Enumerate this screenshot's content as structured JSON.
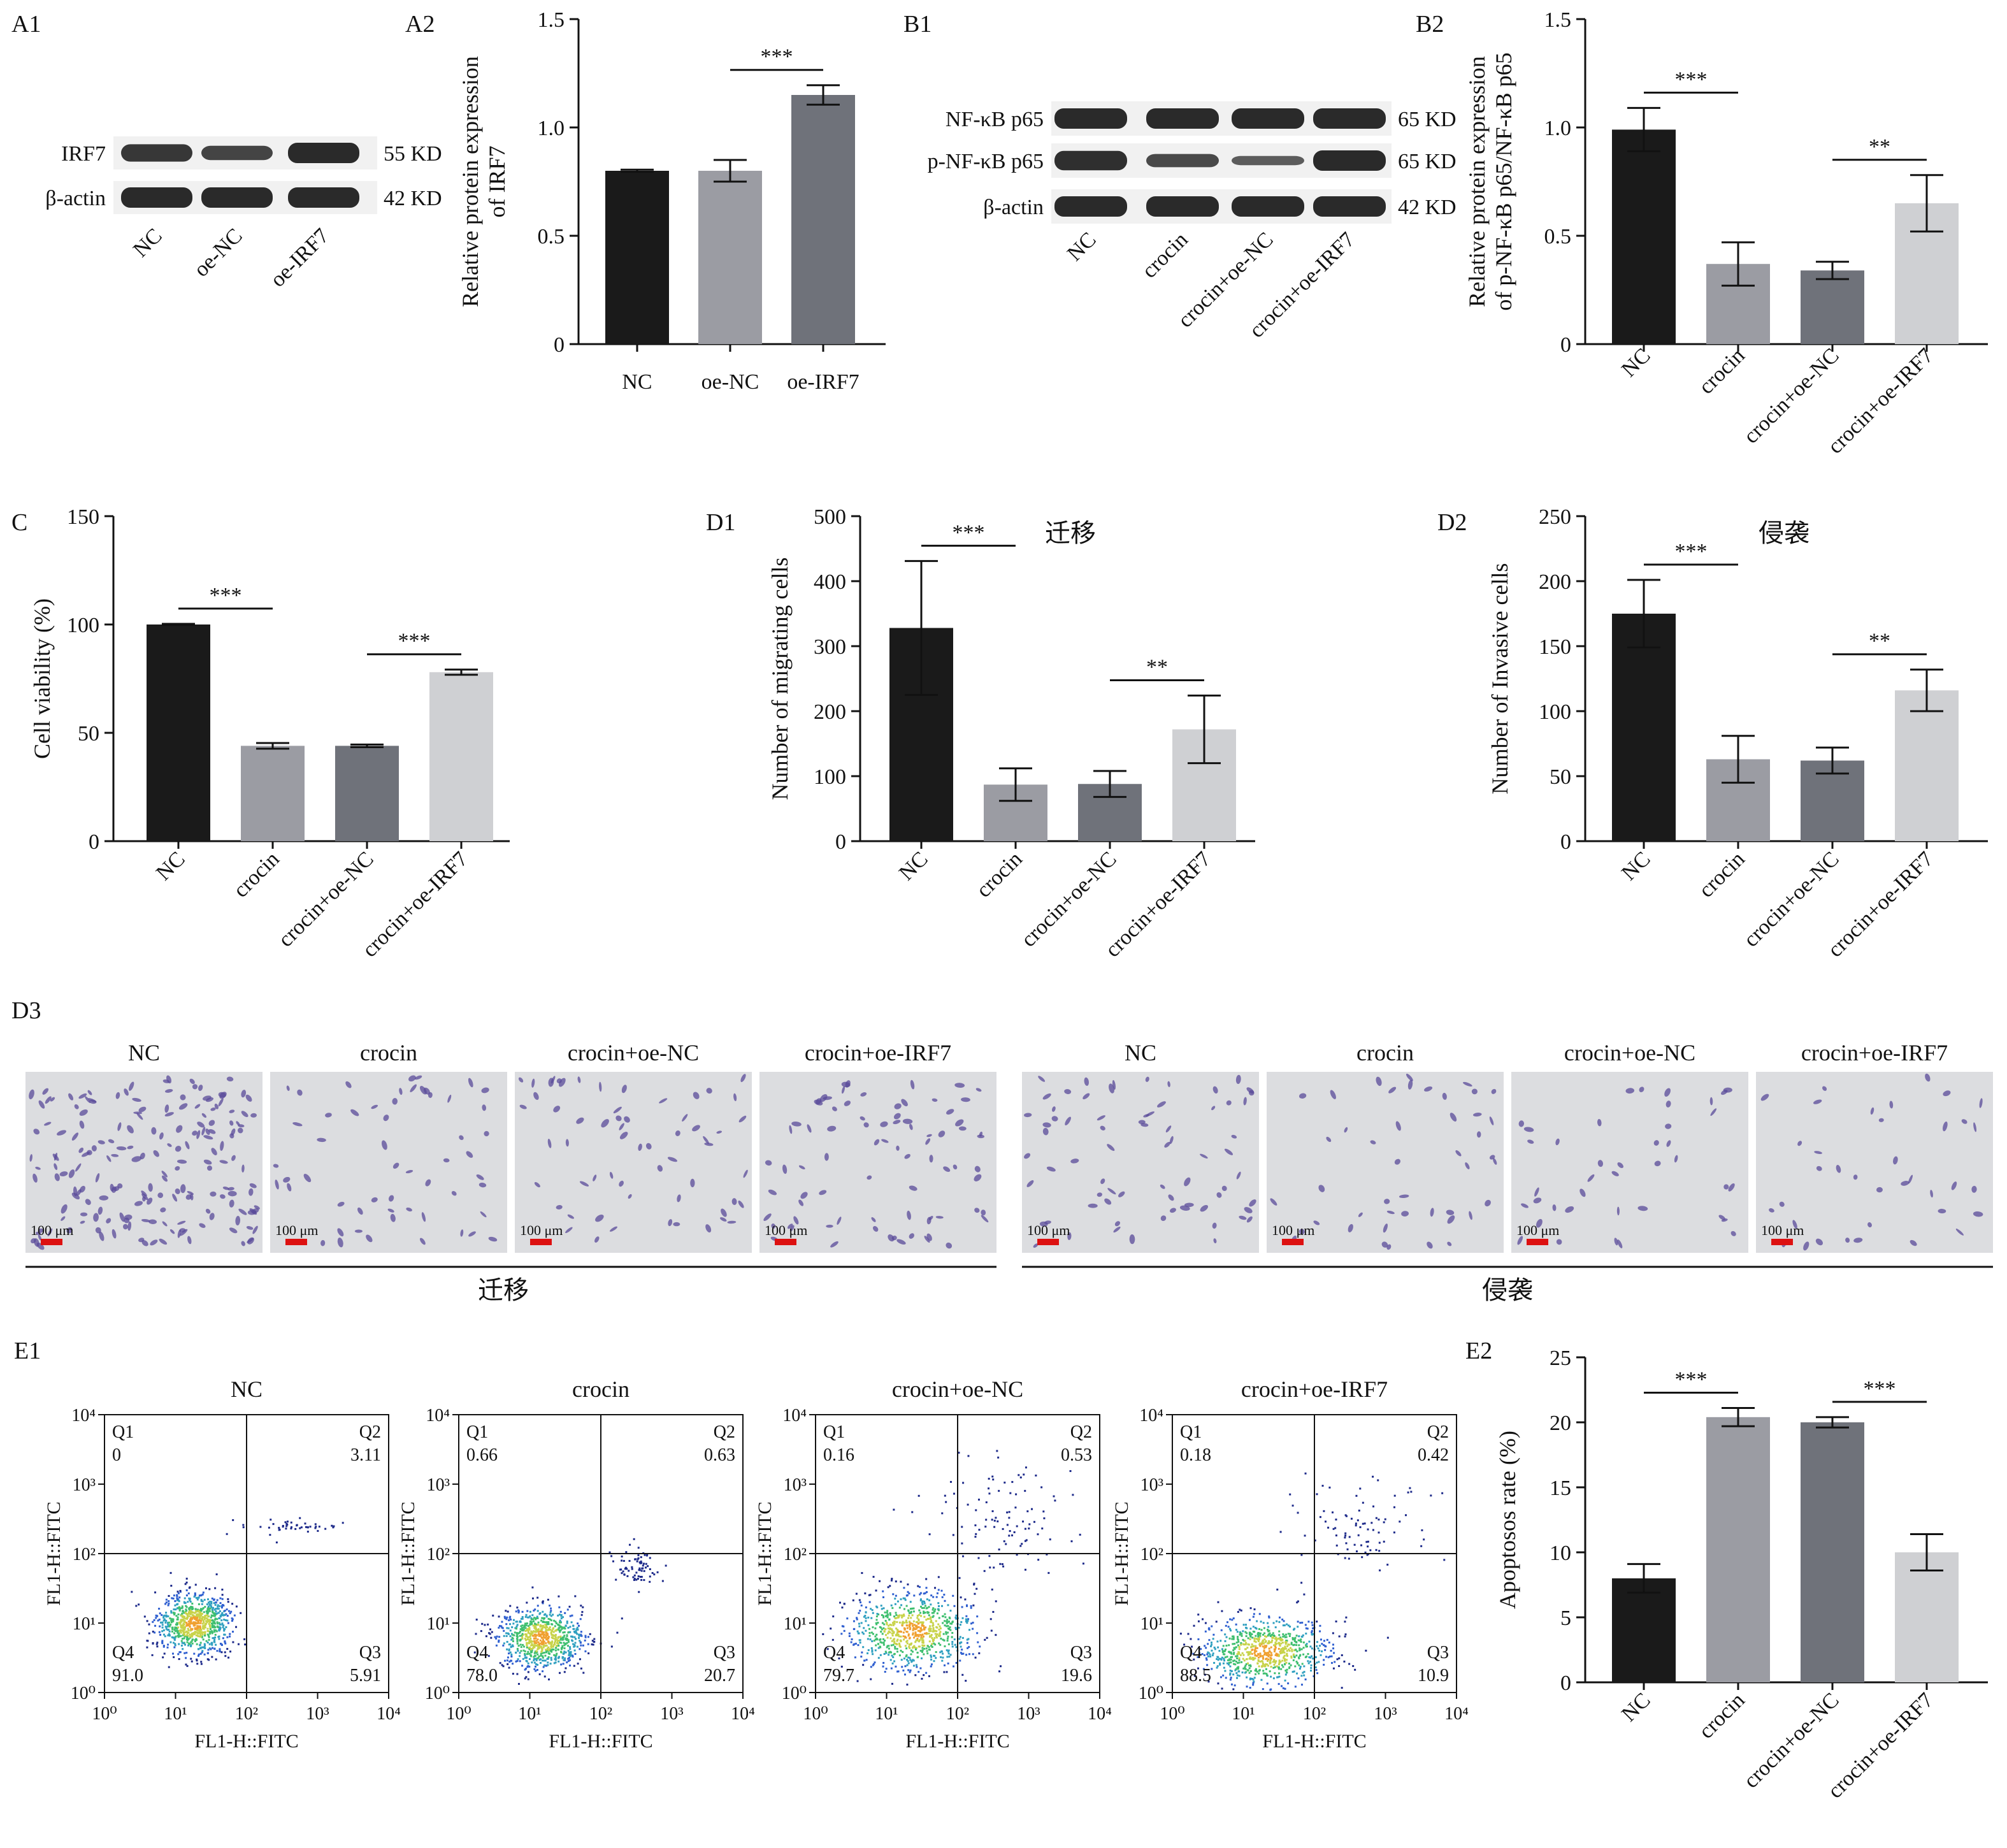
{
  "colors": {
    "black": "#1a1a1a",
    "gray1": "#9b9ca3",
    "gray2": "#6f727a",
    "light": "#cfd0d3",
    "blot": "#2a2a2a",
    "stain": "#5a4a9a",
    "scale": "#d11",
    "micro_bg": "#dcdde0"
  },
  "panel_labels": {
    "a1": "A1",
    "a2": "A2",
    "b1": "B1",
    "b2": "B2",
    "c": "C",
    "d1": "D1",
    "d2": "D2",
    "d3": "D3",
    "e1": "E1",
    "e2": "E2"
  },
  "blot_a": {
    "rows": [
      "IRF7",
      "β-actin"
    ],
    "sizes": [
      "55 KD",
      "42 KD"
    ],
    "lanes": [
      "NC",
      "oe-NC",
      "oe-IRF7"
    ]
  },
  "blot_b": {
    "rows": [
      "NF-κB p65",
      "p-NF-κB p65",
      "β-actin"
    ],
    "sizes": [
      "65 KD",
      "65 KD",
      "42 KD"
    ],
    "lanes": [
      "NC",
      "crocin",
      "crocin+oe-NC",
      "crocin+oe-IRF7"
    ]
  },
  "d3": {
    "groups": [
      "NC",
      "crocin",
      "crocin+oe-NC",
      "crocin+oe-IRF7"
    ],
    "scale_label": "100 μm",
    "migration_label": "迁移",
    "invasion_label": "侵袭"
  },
  "flow": {
    "axis_label_x": "FL1-H::FITC",
    "axis_label_y": "FL1-H::FITC",
    "ticks": [
      "10⁰",
      "10¹",
      "10²",
      "10³",
      "10⁴"
    ],
    "quad_names": [
      "Q1",
      "Q2",
      "Q3",
      "Q4"
    ],
    "plots": [
      {
        "title": "NC",
        "q1": "0",
        "q2": "3.11",
        "q3": "5.91",
        "q4": "91.0"
      },
      {
        "title": "crocin",
        "q1": "0.66",
        "q2": "0.63",
        "q3": "20.7",
        "q4": "78.0"
      },
      {
        "title": "crocin+oe-NC",
        "q1": "0.16",
        "q2": "0.53",
        "q3": "19.6",
        "q4": "79.7"
      },
      {
        "title": "crocin+oe-IRF7",
        "q1": "0.18",
        "q2": "0.42",
        "q3": "10.9",
        "q4": "88.5"
      }
    ]
  },
  "chart_data": [
    {
      "id": "A2",
      "type": "bar",
      "title": "",
      "categories": [
        "NC",
        "oe-NC",
        "oe-IRF7"
      ],
      "values": [
        0.8,
        0.8,
        1.15
      ],
      "errors": [
        0.005,
        0.05,
        0.045
      ],
      "ylabel": [
        "Relative protein expression",
        "of IRF7"
      ],
      "ylim": [
        0,
        1.5
      ],
      "yticks": [
        0,
        0.5,
        1.0,
        1.5
      ],
      "ytick_labels": [
        "0",
        "0.5",
        "1.0",
        "1.5"
      ],
      "colors": [
        "#1a1a1a",
        "#9b9ca3",
        "#6f727a"
      ],
      "significance": [
        {
          "from": 1,
          "to": 2,
          "label": "***"
        }
      ]
    },
    {
      "id": "B2",
      "type": "bar",
      "title": "",
      "categories": [
        "NC",
        "crocin",
        "crocin+oe-NC",
        "crocin+oe-IRF7"
      ],
      "values": [
        0.99,
        0.37,
        0.34,
        0.65
      ],
      "errors": [
        0.1,
        0.1,
        0.04,
        0.13
      ],
      "ylabel": [
        "Relative protein expression",
        "of p-NF-κB p65/NF-κB p65"
      ],
      "ylim": [
        0,
        1.5
      ],
      "yticks": [
        0,
        0.5,
        1.0,
        1.5
      ],
      "ytick_labels": [
        "0",
        "0.5",
        "1.0",
        "1.5"
      ],
      "colors": [
        "#1a1a1a",
        "#9b9ca3",
        "#6f727a",
        "#cfd0d3"
      ],
      "significance": [
        {
          "from": 0,
          "to": 1,
          "label": "***"
        },
        {
          "from": 2,
          "to": 3,
          "label": "**"
        }
      ]
    },
    {
      "id": "C",
      "type": "bar",
      "title": "",
      "categories": [
        "NC",
        "crocin",
        "crocin+oe-NC",
        "crocin+oe-IRF7"
      ],
      "values": [
        100,
        44,
        44,
        78
      ],
      "errors": [
        0.3,
        1.3,
        0.6,
        1.2
      ],
      "ylabel": [
        "Cell viability (%)"
      ],
      "ylim": [
        0,
        150
      ],
      "yticks": [
        0,
        50,
        100,
        150
      ],
      "ytick_labels": [
        "0",
        "50",
        "100",
        "150"
      ],
      "colors": [
        "#1a1a1a",
        "#9b9ca3",
        "#6f727a",
        "#cfd0d3"
      ],
      "significance": [
        {
          "from": 0,
          "to": 1,
          "label": "***"
        },
        {
          "from": 2,
          "to": 3,
          "label": "***"
        }
      ]
    },
    {
      "id": "D1",
      "type": "bar",
      "title": "迁移",
      "categories": [
        "NC",
        "crocin",
        "crocin+oe-NC",
        "crocin+oe-IRF7"
      ],
      "values": [
        328,
        87,
        88,
        172
      ],
      "errors": [
        103,
        25,
        20,
        52
      ],
      "ylabel": [
        "Number of migrating cells"
      ],
      "ylim": [
        0,
        500
      ],
      "yticks": [
        0,
        100,
        200,
        300,
        400,
        500
      ],
      "ytick_labels": [
        "0",
        "100",
        "200",
        "300",
        "400",
        "500"
      ],
      "colors": [
        "#1a1a1a",
        "#9b9ca3",
        "#6f727a",
        "#cfd0d3"
      ],
      "significance": [
        {
          "from": 0,
          "to": 1,
          "label": "***"
        },
        {
          "from": 2,
          "to": 3,
          "label": "**"
        }
      ]
    },
    {
      "id": "D2",
      "type": "bar",
      "title": "侵袭",
      "categories": [
        "NC",
        "crocin",
        "crocin+oe-NC",
        "crocin+oe-IRF7"
      ],
      "values": [
        175,
        63,
        62,
        116
      ],
      "errors": [
        26,
        18,
        10,
        16
      ],
      "ylabel": [
        "Number of Invasive cells"
      ],
      "ylim": [
        0,
        250
      ],
      "yticks": [
        0,
        50,
        100,
        150,
        200,
        250
      ],
      "ytick_labels": [
        "0",
        "50",
        "100",
        "150",
        "200",
        "250"
      ],
      "colors": [
        "#1a1a1a",
        "#9b9ca3",
        "#6f727a",
        "#cfd0d3"
      ],
      "significance": [
        {
          "from": 0,
          "to": 1,
          "label": "***"
        },
        {
          "from": 2,
          "to": 3,
          "label": "**"
        }
      ]
    },
    {
      "id": "E2",
      "type": "bar",
      "title": "",
      "categories": [
        "NC",
        "crocin",
        "crocin+oe-NC",
        "crocin+oe-IRF7"
      ],
      "values": [
        8.0,
        20.4,
        20.0,
        10.0
      ],
      "errors": [
        1.1,
        0.7,
        0.4,
        1.4
      ],
      "ylabel": [
        "Apoptosos rate (%)"
      ],
      "ylim": [
        0,
        25
      ],
      "yticks": [
        0,
        5,
        10,
        15,
        20,
        25
      ],
      "ytick_labels": [
        "0",
        "5",
        "10",
        "15",
        "20",
        "25"
      ],
      "colors": [
        "#1a1a1a",
        "#9b9ca3",
        "#6f727a",
        "#cfd0d3"
      ],
      "significance": [
        {
          "from": 0,
          "to": 1,
          "label": "***"
        },
        {
          "from": 2,
          "to": 3,
          "label": "***"
        }
      ]
    }
  ]
}
